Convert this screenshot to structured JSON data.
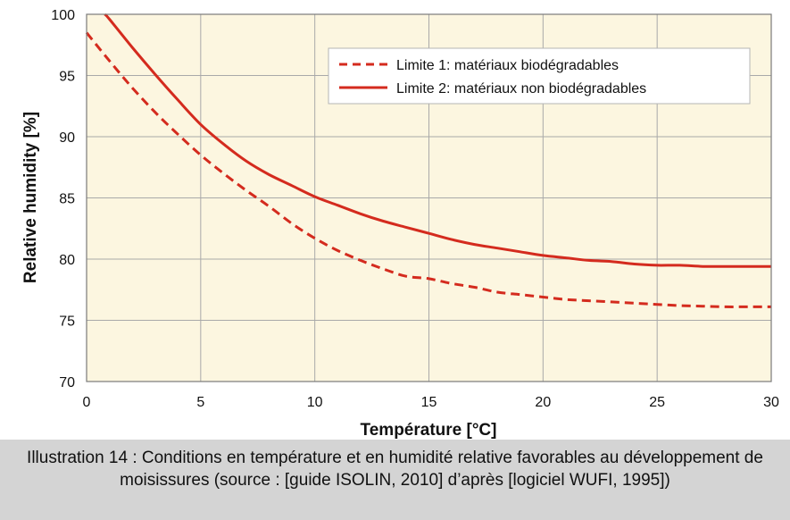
{
  "chart_data": {
    "type": "line",
    "xlabel": "Température [°C]",
    "ylabel": "Relative humidity [%]",
    "xlim": [
      0,
      30
    ],
    "ylim": [
      70,
      100
    ],
    "x_ticks": [
      "0",
      "5",
      "10",
      "15",
      "20",
      "25",
      "30"
    ],
    "y_ticks": [
      "70",
      "75",
      "80",
      "85",
      "90",
      "95",
      "100"
    ],
    "grid": true,
    "legend_position": "top-right",
    "plot_background": "#fcf6e0",
    "series": [
      {
        "name": "Limite 1: matériaux biodégradables",
        "style": "dashed",
        "color": "#d42b1e",
        "x": [
          0,
          1,
          2,
          3,
          4,
          5,
          6,
          7,
          8,
          9,
          10,
          11,
          12,
          13,
          14,
          15,
          16,
          17,
          18,
          19,
          20,
          21,
          22,
          23,
          24,
          25,
          26,
          27,
          28,
          29,
          30
        ],
        "y": [
          98.5,
          96.2,
          94.0,
          92.0,
          90.2,
          88.5,
          87.0,
          85.6,
          84.3,
          82.9,
          81.7,
          80.7,
          79.9,
          79.2,
          78.6,
          78.4,
          78.0,
          77.7,
          77.3,
          77.1,
          76.9,
          76.7,
          76.6,
          76.5,
          76.4,
          76.3,
          76.2,
          76.15,
          76.1,
          76.1,
          76.1
        ]
      },
      {
        "name": "Limite 2: matériaux non biodégradables",
        "style": "solid",
        "color": "#d42b1e",
        "x": [
          0.8,
          1,
          2,
          3,
          4,
          5,
          6,
          7,
          8,
          9,
          10,
          11,
          12,
          13,
          14,
          15,
          16,
          17,
          18,
          19,
          20,
          21,
          22,
          23,
          24,
          25,
          26,
          27,
          28,
          29,
          30
        ],
        "y": [
          100,
          99.6,
          97.3,
          95.1,
          93.0,
          91.0,
          89.4,
          88.0,
          86.9,
          86.0,
          85.1,
          84.4,
          83.7,
          83.1,
          82.6,
          82.1,
          81.6,
          81.2,
          80.9,
          80.6,
          80.3,
          80.1,
          79.9,
          79.8,
          79.6,
          79.5,
          79.5,
          79.4,
          79.4,
          79.4,
          79.4
        ]
      }
    ]
  },
  "caption": "Illustration 14 : Conditions en température et en humidité relative favorables au développement de moisissures (source : [guide ISOLIN, 2010] d’après [logiciel WUFI, 1995])"
}
